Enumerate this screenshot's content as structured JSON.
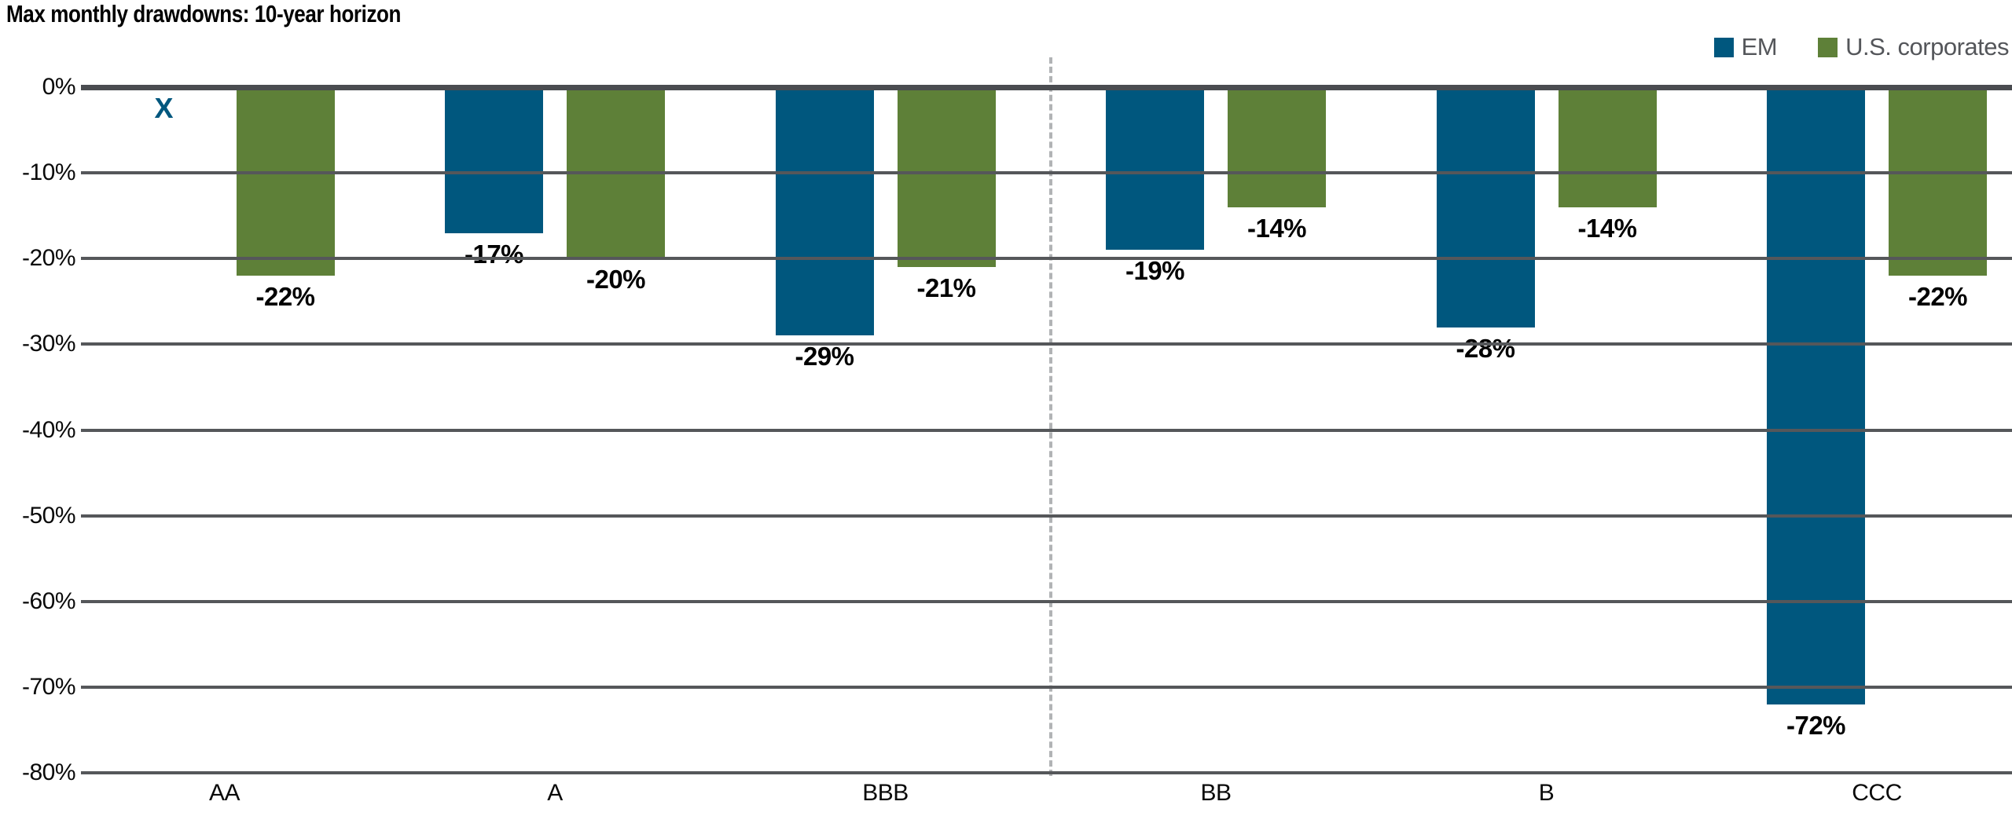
{
  "chart_data": {
    "type": "bar",
    "title": "Max monthly drawdowns: 10-year horizon",
    "categories": [
      "AA",
      "A",
      "BBB",
      "BB",
      "B",
      "CCC"
    ],
    "series": [
      {
        "name": "EM",
        "color": "#00577e",
        "values": [
          null,
          -17,
          -29,
          -19,
          -28,
          -72
        ],
        "labels": [
          "X",
          "-17%",
          "-29%",
          "-19%",
          "-28%",
          "-72%"
        ]
      },
      {
        "name": "U.S. corporates",
        "color": "#5e8038",
        "values": [
          -22,
          -20,
          -21,
          -14,
          -14,
          -22
        ],
        "labels": [
          "-22%",
          "-20%",
          "-21%",
          "-14%",
          "-14%",
          "-22%"
        ]
      }
    ],
    "ylim": [
      -80,
      0
    ],
    "ytick_labels": [
      "0%",
      "-10%",
      "-20%",
      "-30%",
      "-40%",
      "-50%",
      "-60%",
      "-70%",
      "-80%"
    ],
    "missing_marker": "X",
    "separator_between": [
      "BBB",
      "BB"
    ],
    "legend_position": "top-right",
    "grid": "horizontal",
    "colors": {
      "gridline": "#55575a",
      "zero_axis": "#4a4c50",
      "separator": "#b1b3b5",
      "legend_text": "#54565a"
    }
  }
}
